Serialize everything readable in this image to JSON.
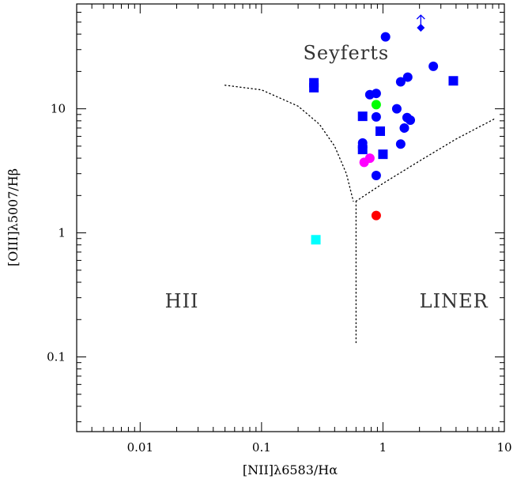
{
  "chart_data": {
    "type": "scatter",
    "title": "",
    "xlabel": "[NII]λ6583/Hα",
    "ylabel": "[OIII]λ5007/Hβ",
    "xscale": "log",
    "yscale": "log",
    "xlim": [
      0.003,
      10
    ],
    "ylim": [
      0.025,
      70
    ],
    "x_ticks": [
      {
        "value": 0.01,
        "label": "0.01"
      },
      {
        "value": 0.1,
        "label": "0.1"
      },
      {
        "value": 1,
        "label": "1"
      },
      {
        "value": 10,
        "label": "10"
      }
    ],
    "y_ticks": [
      {
        "value": 0.1,
        "label": "0.1"
      },
      {
        "value": 1,
        "label": "1"
      },
      {
        "value": 10,
        "label": "10"
      }
    ],
    "regions": [
      {
        "label": "Seyferts",
        "x": 0.22,
        "y": 25
      },
      {
        "label": "HII",
        "x": 0.016,
        "y": 0.25
      },
      {
        "label": "LINER",
        "x": 2.0,
        "y": 0.25
      }
    ],
    "boundaries": [
      {
        "name": "hii-boundary",
        "points": [
          [
            0.05,
            15.5
          ],
          [
            0.1,
            14.2
          ],
          [
            0.2,
            10.5
          ],
          [
            0.3,
            7.5
          ],
          [
            0.4,
            5.0
          ],
          [
            0.5,
            3.0
          ],
          [
            0.57,
            1.8
          ]
        ]
      },
      {
        "name": "vertical-boundary",
        "points": [
          [
            0.6,
            1.8
          ],
          [
            0.6,
            0.13
          ]
        ]
      },
      {
        "name": "liner-seyfert-boundary",
        "points": [
          [
            0.6,
            1.8
          ],
          [
            1.0,
            2.5
          ],
          [
            2.0,
            3.8
          ],
          [
            4.0,
            5.7
          ],
          [
            8.5,
            8.4
          ]
        ]
      }
    ],
    "series": [
      {
        "color": "#0000ff",
        "points": [
          {
            "x": 1.05,
            "y": 38,
            "marker": "circle"
          },
          {
            "x": 2.6,
            "y": 22,
            "marker": "circle"
          },
          {
            "x": 1.6,
            "y": 18,
            "marker": "circle"
          },
          {
            "x": 1.4,
            "y": 16.5,
            "marker": "circle"
          },
          {
            "x": 0.88,
            "y": 13.3,
            "marker": "circle"
          },
          {
            "x": 0.78,
            "y": 13.0,
            "marker": "circle"
          },
          {
            "x": 1.3,
            "y": 10.0,
            "marker": "circle"
          },
          {
            "x": 0.88,
            "y": 8.6,
            "marker": "circle"
          },
          {
            "x": 1.58,
            "y": 8.5,
            "marker": "circle"
          },
          {
            "x": 1.68,
            "y": 8.1,
            "marker": "circle"
          },
          {
            "x": 1.5,
            "y": 7.0,
            "marker": "circle"
          },
          {
            "x": 0.68,
            "y": 5.3,
            "marker": "circle"
          },
          {
            "x": 0.68,
            "y": 4.9,
            "marker": "circle"
          },
          {
            "x": 1.4,
            "y": 5.2,
            "marker": "circle"
          },
          {
            "x": 0.88,
            "y": 2.9,
            "marker": "circle"
          },
          {
            "x": 0.27,
            "y": 16.2,
            "marker": "square"
          },
          {
            "x": 0.27,
            "y": 14.8,
            "marker": "square"
          },
          {
            "x": 3.8,
            "y": 16.8,
            "marker": "square"
          },
          {
            "x": 0.68,
            "y": 8.7,
            "marker": "square"
          },
          {
            "x": 0.95,
            "y": 6.6,
            "marker": "square"
          },
          {
            "x": 0.68,
            "y": 4.7,
            "marker": "square"
          },
          {
            "x": 1.0,
            "y": 4.3,
            "marker": "square"
          },
          {
            "x": 2.05,
            "y": 45,
            "marker": "diamond-arrow"
          }
        ]
      },
      {
        "color": "#00ff00",
        "points": [
          {
            "x": 0.88,
            "y": 10.8,
            "marker": "circle"
          }
        ]
      },
      {
        "color": "#ff00ff",
        "points": [
          {
            "x": 0.7,
            "y": 3.7,
            "marker": "circle"
          },
          {
            "x": 0.78,
            "y": 4.0,
            "marker": "circle"
          }
        ]
      },
      {
        "color": "#ff0000",
        "points": [
          {
            "x": 0.88,
            "y": 1.38,
            "marker": "circle"
          }
        ]
      },
      {
        "color": "#00ffff",
        "points": [
          {
            "x": 0.28,
            "y": 0.88,
            "marker": "square"
          }
        ]
      }
    ],
    "grid": false,
    "legend": "none"
  }
}
